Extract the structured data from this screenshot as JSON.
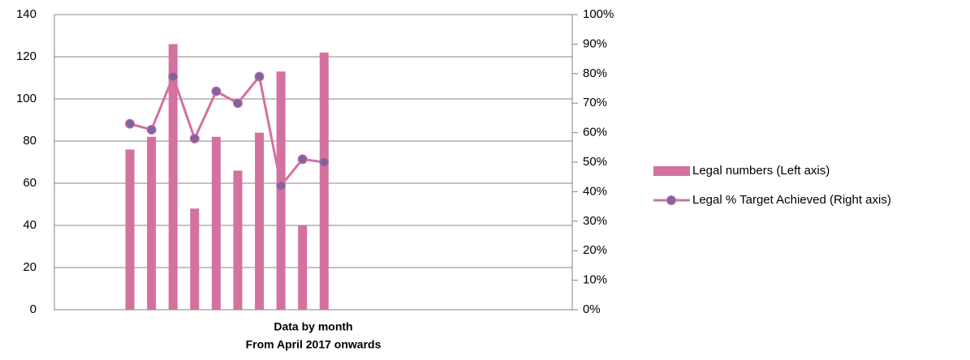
{
  "chart_data": {
    "type": "bar_line",
    "xlabel_lines": [
      "Data by month",
      "From April 2017 onwards"
    ],
    "categories": [
      null,
      null,
      null,
      null,
      null,
      null,
      null,
      null,
      null,
      null,
      null,
      null,
      null,
      null,
      null,
      null,
      null,
      null,
      null,
      null,
      null,
      null,
      null,
      null
    ],
    "series": [
      {
        "name": "Legal numbers (Left axis)",
        "type": "bar",
        "color": "#d4719f",
        "axis": "y",
        "values": [
          null,
          null,
          null,
          76,
          82,
          126,
          48,
          82,
          66,
          84,
          113,
          40,
          122,
          null,
          null,
          null,
          null,
          null,
          null,
          null,
          null,
          null,
          null,
          null
        ]
      },
      {
        "name": "Legal % Target Achieved (Right axis)",
        "type": "line",
        "color": "#d4719f",
        "marker_color": "#8064a2",
        "axis": "y2",
        "values": [
          null,
          null,
          null,
          63,
          61,
          79,
          58,
          74,
          70,
          79,
          42,
          51,
          50,
          null,
          null,
          null,
          null,
          null,
          null,
          null,
          null,
          null,
          null,
          null
        ]
      }
    ],
    "ylim": [
      0,
      140
    ],
    "yticks": [
      0,
      20,
      40,
      60,
      80,
      100,
      120,
      140
    ],
    "y2lim": [
      0,
      100
    ],
    "y2ticks": [
      {
        "value": 0,
        "label": "0%"
      },
      {
        "value": 10,
        "label": "10%"
      },
      {
        "value": 20,
        "label": "20%"
      },
      {
        "value": 30,
        "label": "30%"
      },
      {
        "value": 40,
        "label": "40%"
      },
      {
        "value": 50,
        "label": "50%"
      },
      {
        "value": 60,
        "label": "60%"
      },
      {
        "value": 70,
        "label": "70%"
      },
      {
        "value": 80,
        "label": "80%"
      },
      {
        "value": 90,
        "label": "90%"
      },
      {
        "value": 100,
        "label": "100%"
      }
    ],
    "grid": true,
    "legend": "right"
  }
}
